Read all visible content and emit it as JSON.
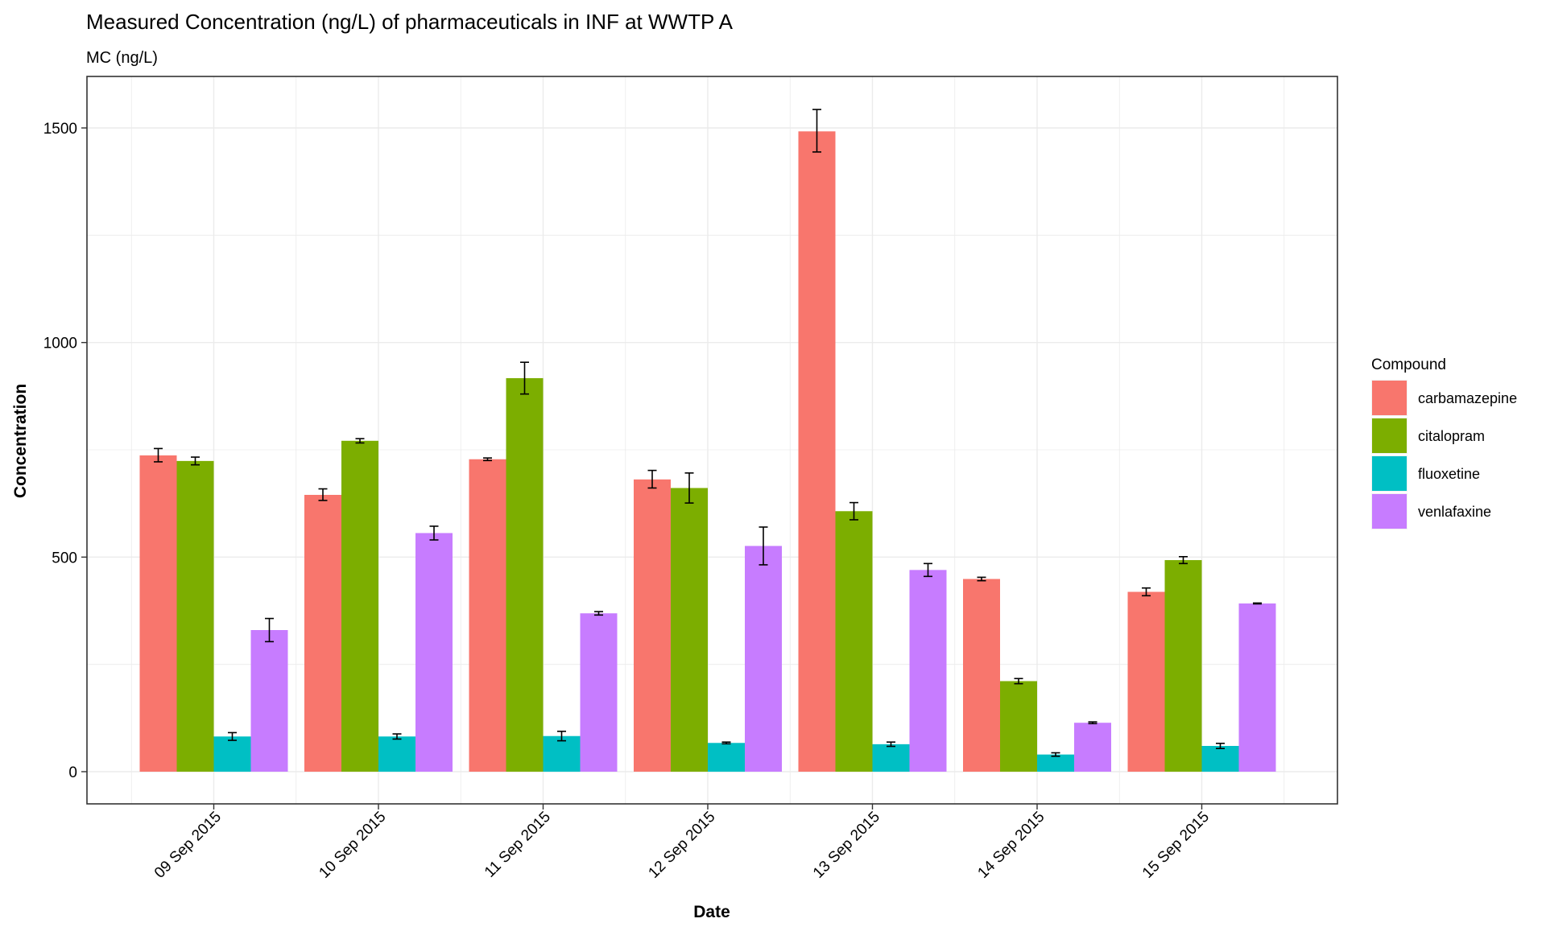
{
  "chart_data": {
    "type": "bar",
    "title": "Measured Concentration (ng/L) of pharmaceuticals in INF at WWTP A",
    "subtitle": "MC (ng/L)",
    "xlabel": "Date",
    "ylabel": "Concentration",
    "ylim": [
      -75,
      1620
    ],
    "yticks": [
      0,
      500,
      1000,
      1500
    ],
    "grid": true,
    "legend_position": "right",
    "legend_title": "Compound",
    "categories": [
      "09 Sep 2015",
      "10 Sep 2015",
      "11 Sep 2015",
      "12 Sep 2015",
      "13 Sep 2015",
      "14 Sep 2015",
      "15 Sep 2015"
    ],
    "series": [
      {
        "name": "carbamazepine",
        "color": "#F8766D",
        "values": [
          737,
          645,
          728,
          681,
          1492,
          449,
          419
        ],
        "error_low": [
          722,
          632,
          725,
          661,
          1444,
          445,
          410
        ],
        "error_high": [
          753,
          659,
          731,
          702,
          1543,
          453,
          428
        ]
      },
      {
        "name": "citalopram",
        "color": "#7CAE00",
        "values": [
          724,
          771,
          917,
          661,
          607,
          211,
          493
        ],
        "error_low": [
          715,
          766,
          880,
          626,
          587,
          205,
          485
        ],
        "error_high": [
          733,
          776,
          954,
          696,
          627,
          217,
          501
        ]
      },
      {
        "name": "fluoxetine",
        "color": "#00BFC4",
        "values": [
          82,
          82,
          83,
          67,
          64,
          40,
          60
        ],
        "error_low": [
          73,
          76,
          72,
          65,
          59,
          36,
          54
        ],
        "error_high": [
          91,
          88,
          94,
          69,
          69,
          44,
          66
        ]
      },
      {
        "name": "venlafaxine",
        "color": "#C77CFF",
        "values": [
          330,
          556,
          369,
          526,
          470,
          114,
          392
        ],
        "error_low": [
          303,
          540,
          365,
          482,
          455,
          112,
          391
        ],
        "error_high": [
          357,
          572,
          373,
          570,
          485,
          116,
          393
        ]
      }
    ]
  }
}
